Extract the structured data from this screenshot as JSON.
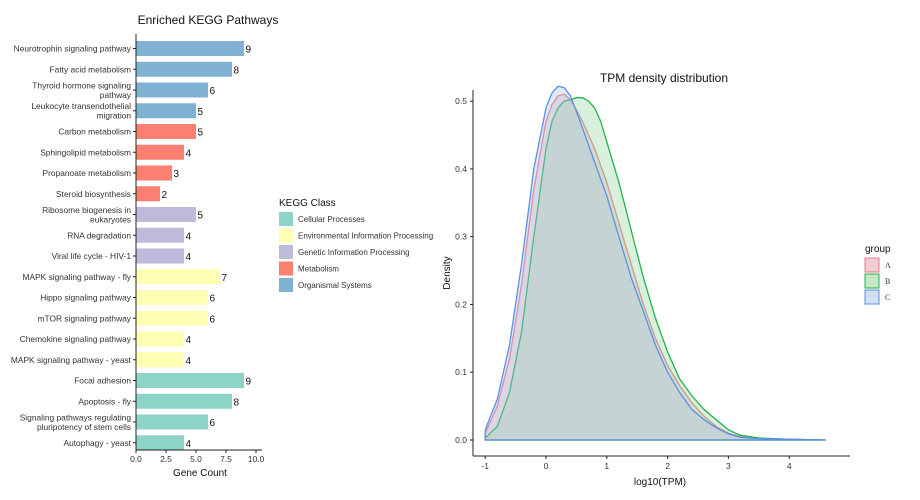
{
  "chart_data": [
    {
      "type": "bar",
      "orientation": "horizontal",
      "title": "Enriched KEGG Pathways",
      "xlabel": "Gene Count",
      "ylabel": "",
      "xlim": [
        0,
        10.5
      ],
      "xticks": [
        "0.0",
        "2.5",
        "5.0",
        "7.5",
        "10.0"
      ],
      "grid": false,
      "legend": {
        "title": "KEGG Class",
        "position": "right",
        "entries": [
          {
            "name": "Cellular Processes",
            "color": "#8dd3c7"
          },
          {
            "name": "Environmental Information Processing",
            "color": "#ffffb3"
          },
          {
            "name": "Genetic Information Processing",
            "color": "#bebada"
          },
          {
            "name": "Metabolism",
            "color": "#fb8072"
          },
          {
            "name": "Organismal Systems",
            "color": "#80b1d3"
          }
        ]
      },
      "categories": [
        {
          "label": [
            "Neurotrophin signaling pathway"
          ],
          "value": 9,
          "class": "Organismal Systems"
        },
        {
          "label": [
            "Fatty acid metabolism"
          ],
          "value": 8,
          "class": "Organismal Systems"
        },
        {
          "label": [
            "Thyroid hormone signaling",
            "pathway"
          ],
          "value": 6,
          "class": "Organismal Systems"
        },
        {
          "label": [
            "Leukocyte transendothelial",
            "migration"
          ],
          "value": 5,
          "class": "Organismal Systems"
        },
        {
          "label": [
            "Carbon metabolism"
          ],
          "value": 5,
          "class": "Metabolism"
        },
        {
          "label": [
            "Sphingolipid metabolism"
          ],
          "value": 4,
          "class": "Metabolism"
        },
        {
          "label": [
            "Propanoate metabolism"
          ],
          "value": 3,
          "class": "Metabolism"
        },
        {
          "label": [
            "Steroid biosynthesis"
          ],
          "value": 2,
          "class": "Metabolism"
        },
        {
          "label": [
            "Ribosome biogenesis in",
            "eukaryotes"
          ],
          "value": 5,
          "class": "Genetic Information Processing"
        },
        {
          "label": [
            "RNA degradation"
          ],
          "value": 4,
          "class": "Genetic Information Processing"
        },
        {
          "label": [
            "Viral life cycle - HIV-1"
          ],
          "value": 4,
          "class": "Genetic Information Processing"
        },
        {
          "label": [
            "MAPK signaling pathway - fly"
          ],
          "value": 7,
          "class": "Environmental Information Processing"
        },
        {
          "label": [
            "Hippo signaling pathway"
          ],
          "value": 6,
          "class": "Environmental Information Processing"
        },
        {
          "label": [
            "mTOR signaling pathway"
          ],
          "value": 6,
          "class": "Environmental Information Processing"
        },
        {
          "label": [
            "Chemokine signaling pathway"
          ],
          "value": 4,
          "class": "Environmental Information Processing"
        },
        {
          "label": [
            "MAPK signaling pathway - yeast"
          ],
          "value": 4,
          "class": "Environmental Information Processing"
        },
        {
          "label": [
            "Focal adhesion"
          ],
          "value": 9,
          "class": "Cellular Processes"
        },
        {
          "label": [
            "Apoptosis - fly"
          ],
          "value": 8,
          "class": "Cellular Processes"
        },
        {
          "label": [
            "Signaling pathways regulating",
            "pluripotency of stem cells"
          ],
          "value": 6,
          "class": "Cellular Processes"
        },
        {
          "label": [
            "Autophagy - yeast"
          ],
          "value": 4,
          "class": "Cellular Processes"
        }
      ]
    },
    {
      "type": "area",
      "title": "TPM density distribution",
      "xlabel": "log10(TPM)",
      "ylabel": "Density",
      "xlim": [
        -1.2,
        5.0
      ],
      "ylim": [
        0,
        0.54
      ],
      "xticks": [
        "-1",
        "0",
        "1",
        "2",
        "3",
        "4"
      ],
      "yticks": [
        "0.0",
        "0.1",
        "0.2",
        "0.3",
        "0.4",
        "0.5"
      ],
      "grid": false,
      "legend": {
        "title": "group",
        "position": "right"
      },
      "series": [
        {
          "name": "A",
          "fill": "#e7a3ae",
          "stroke": "#e47a8a",
          "x": [
            -1,
            -0.8,
            -0.6,
            -0.4,
            -0.2,
            0,
            0.1,
            0.2,
            0.3,
            0.4,
            0.5,
            0.6,
            0.8,
            1.0,
            1.2,
            1.4,
            1.6,
            1.8,
            2.0,
            2.2,
            2.4,
            2.6,
            2.8,
            3.0,
            3.2,
            3.5,
            4.0,
            4.6
          ],
          "y": [
            0.01,
            0.05,
            0.12,
            0.23,
            0.37,
            0.47,
            0.495,
            0.508,
            0.51,
            0.502,
            0.487,
            0.47,
            0.43,
            0.38,
            0.32,
            0.26,
            0.2,
            0.15,
            0.11,
            0.08,
            0.055,
            0.035,
            0.02,
            0.01,
            0.005,
            0.002,
            0.001,
            0.0
          ]
        },
        {
          "name": "B",
          "fill": "#93d69b",
          "stroke": "#22b34a",
          "x": [
            -1,
            -0.8,
            -0.6,
            -0.4,
            -0.2,
            0,
            0.1,
            0.2,
            0.3,
            0.4,
            0.5,
            0.6,
            0.7,
            0.8,
            0.9,
            1.0,
            1.2,
            1.4,
            1.6,
            1.8,
            2.0,
            2.2,
            2.4,
            2.6,
            2.8,
            3.0,
            3.2,
            3.5,
            4.0,
            4.6
          ],
          "y": [
            0.003,
            0.02,
            0.07,
            0.16,
            0.3,
            0.43,
            0.47,
            0.49,
            0.5,
            0.502,
            0.505,
            0.505,
            0.5,
            0.49,
            0.47,
            0.44,
            0.38,
            0.31,
            0.24,
            0.18,
            0.13,
            0.09,
            0.065,
            0.045,
            0.03,
            0.015,
            0.007,
            0.003,
            0.001,
            0.0
          ]
        },
        {
          "name": "C",
          "fill": "#a9c2ea",
          "stroke": "#5b8fe6",
          "x": [
            -1,
            -0.8,
            -0.6,
            -0.4,
            -0.2,
            0,
            0.1,
            0.2,
            0.3,
            0.4,
            0.5,
            0.6,
            0.8,
            1.0,
            1.2,
            1.4,
            1.6,
            1.8,
            2.0,
            2.2,
            2.4,
            2.6,
            2.8,
            3.0,
            3.2,
            3.5,
            4.0,
            4.6
          ],
          "y": [
            0.015,
            0.06,
            0.14,
            0.26,
            0.4,
            0.49,
            0.512,
            0.522,
            0.52,
            0.508,
            0.485,
            0.46,
            0.41,
            0.36,
            0.3,
            0.24,
            0.19,
            0.14,
            0.1,
            0.07,
            0.045,
            0.03,
            0.018,
            0.009,
            0.004,
            0.002,
            0.001,
            0.0
          ]
        }
      ]
    }
  ]
}
